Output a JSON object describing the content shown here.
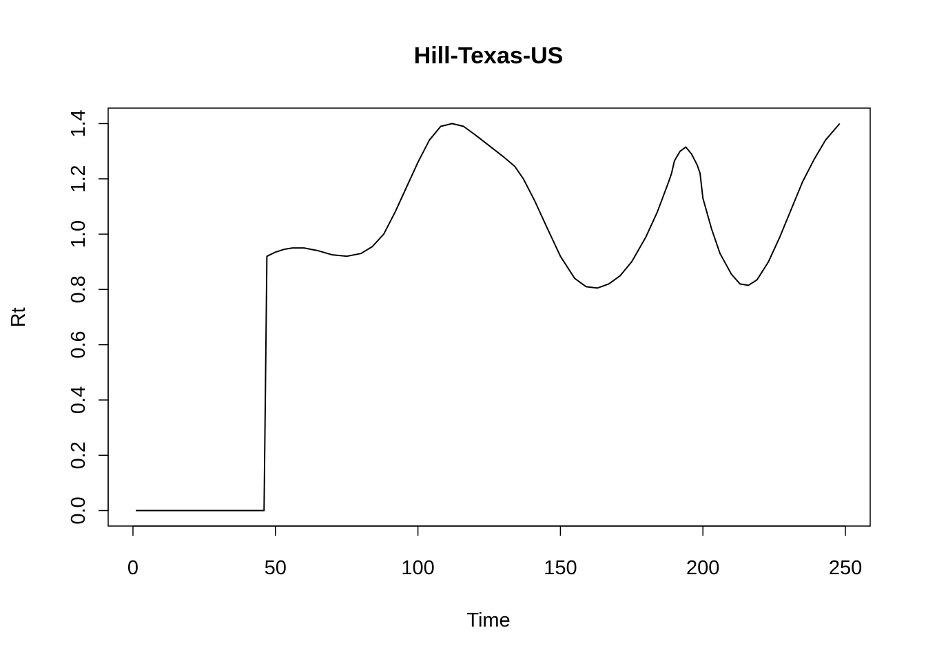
{
  "chart_data": {
    "type": "line",
    "title": "Hill-Texas-US",
    "xlabel": "Time",
    "ylabel": "Rt",
    "xlim": [
      -8.7,
      258.7
    ],
    "ylim": [
      -0.056,
      1.456
    ],
    "x_ticks": [
      0,
      50,
      100,
      150,
      200,
      250
    ],
    "x_tick_labels": [
      "0",
      "50",
      "100",
      "150",
      "200",
      "250"
    ],
    "y_ticks": [
      0.0,
      0.2,
      0.4,
      0.6,
      0.8,
      1.0,
      1.2,
      1.4
    ],
    "y_tick_labels": [
      "0.0",
      "0.2",
      "0.4",
      "0.6",
      "0.8",
      "1.0",
      "1.2",
      "1.4"
    ],
    "grid": false,
    "series": [
      {
        "x": [
          1,
          10,
          20,
          30,
          40,
          46,
          46.5,
          47,
          48,
          50,
          53,
          56,
          60,
          65,
          70,
          75,
          80,
          84,
          88,
          92,
          96,
          100,
          104,
          108,
          112,
          116,
          120,
          125,
          130,
          134,
          137,
          141,
          145,
          150,
          155,
          159,
          163,
          167,
          171,
          175,
          180,
          184,
          188,
          189,
          190,
          192,
          194,
          196,
          198,
          199,
          200,
          203,
          206,
          210,
          213,
          216,
          219,
          223,
          227,
          231,
          235,
          239,
          243,
          248
        ],
        "y": [
          0,
          0,
          0,
          0,
          0,
          0,
          0.45,
          0.92,
          0.925,
          0.935,
          0.945,
          0.95,
          0.95,
          0.94,
          0.925,
          0.92,
          0.93,
          0.955,
          1.0,
          1.08,
          1.17,
          1.26,
          1.34,
          1.39,
          1.4,
          1.39,
          1.36,
          1.32,
          1.28,
          1.245,
          1.2,
          1.12,
          1.03,
          0.92,
          0.84,
          0.81,
          0.805,
          0.82,
          0.85,
          0.9,
          0.99,
          1.08,
          1.19,
          1.22,
          1.265,
          1.3,
          1.315,
          1.29,
          1.25,
          1.22,
          1.13,
          1.02,
          0.93,
          0.855,
          0.82,
          0.815,
          0.835,
          0.9,
          0.99,
          1.09,
          1.19,
          1.27,
          1.34,
          1.4
        ]
      }
    ]
  }
}
